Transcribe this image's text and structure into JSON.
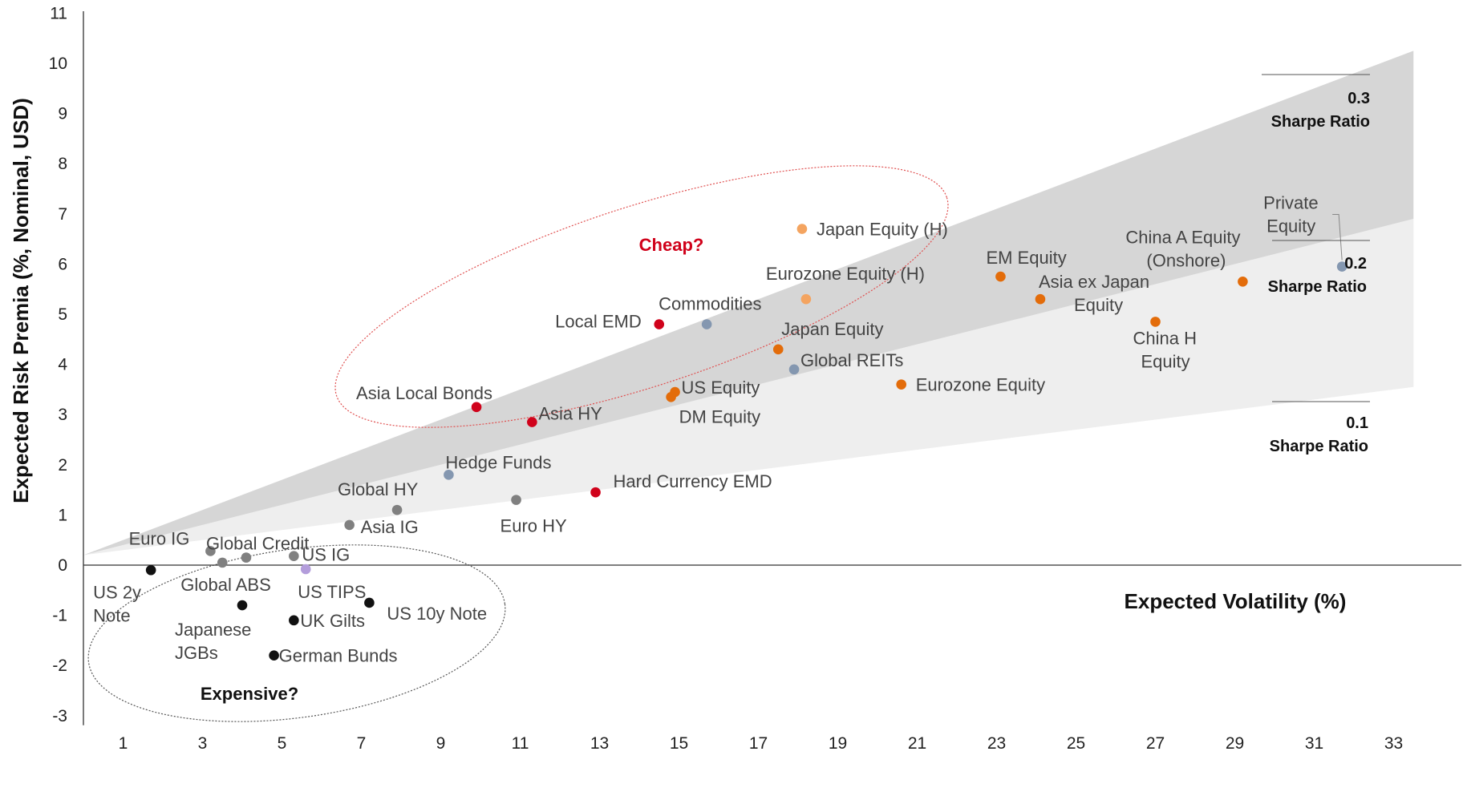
{
  "chart_data": {
    "type": "scatter",
    "xlabel": "Expected Volatility (%)",
    "ylabel": "Expected Risk Premia (%, Nominal, USD)",
    "xlim": [
      0,
      34
    ],
    "ylim": [
      -3,
      11
    ],
    "x_ticks": [
      1,
      3,
      5,
      7,
      9,
      11,
      13,
      15,
      17,
      19,
      21,
      23,
      25,
      27,
      29,
      31,
      33
    ],
    "y_ticks": [
      -3,
      -2,
      -1,
      0,
      1,
      2,
      3,
      4,
      5,
      6,
      7,
      8,
      9,
      10,
      11
    ],
    "grid": false,
    "colors": {
      "black": "#111111",
      "grey": "#808080",
      "blue_grey": "#8497b0",
      "red": "#d0021b",
      "orange": "#e36c0a",
      "light_orange": "#f4a460",
      "lavender": "#b39ddb"
    },
    "sharpe_bands": [
      {
        "label_value": "0.3",
        "label_text": "Sharpe Ratio",
        "ratio": 0.3
      },
      {
        "label_value": "0.2",
        "label_text": "Sharpe Ratio",
        "ratio": 0.2
      },
      {
        "label_value": "0.1",
        "label_text": "Sharpe Ratio",
        "ratio": 0.1
      }
    ],
    "annotations": [
      {
        "text": "Cheap?",
        "color": "#d0021b"
      },
      {
        "text": "Expensive?",
        "color": "#111111"
      }
    ],
    "points": [
      {
        "label": "US 2y Note",
        "x": 1.7,
        "y": -0.1,
        "color": "black"
      },
      {
        "label": "Euro IG",
        "x": 3.2,
        "y": 0.28,
        "color": "grey"
      },
      {
        "label": "Global ABS",
        "x": 3.5,
        "y": 0.05,
        "color": "grey"
      },
      {
        "label": "Global Credit",
        "x": 4.1,
        "y": 0.15,
        "color": "grey"
      },
      {
        "label": "Japanese JGBs",
        "x": 4.0,
        "y": -0.8,
        "color": "black"
      },
      {
        "label": "German Bunds",
        "x": 4.8,
        "y": -1.8,
        "color": "black"
      },
      {
        "label": "UK Gilts",
        "x": 5.3,
        "y": -1.1,
        "color": "black"
      },
      {
        "label": "US IG",
        "x": 5.3,
        "y": 0.18,
        "color": "grey"
      },
      {
        "label": "US TIPS",
        "x": 5.6,
        "y": -0.08,
        "color": "lavender"
      },
      {
        "label": "US 10y Note",
        "x": 7.2,
        "y": -0.75,
        "color": "black"
      },
      {
        "label": "Asia IG",
        "x": 6.7,
        "y": 0.8,
        "color": "grey"
      },
      {
        "label": "Global HY",
        "x": 7.9,
        "y": 1.1,
        "color": "grey"
      },
      {
        "label": "Asia Local Bonds",
        "x": 9.9,
        "y": 3.15,
        "color": "red"
      },
      {
        "label": "Hedge Funds",
        "x": 9.2,
        "y": 1.8,
        "color": "blue_grey"
      },
      {
        "label": "Euro HY",
        "x": 10.9,
        "y": 1.3,
        "color": "grey"
      },
      {
        "label": "Asia HY",
        "x": 11.3,
        "y": 2.85,
        "color": "red"
      },
      {
        "label": "Hard Currency EMD",
        "x": 12.9,
        "y": 1.45,
        "color": "red"
      },
      {
        "label": "Local EMD",
        "x": 14.5,
        "y": 4.8,
        "color": "red"
      },
      {
        "label": "US Equity",
        "x": 14.9,
        "y": 3.45,
        "color": "orange"
      },
      {
        "label": "DM Equity",
        "x": 14.8,
        "y": 3.35,
        "color": "orange"
      },
      {
        "label": "Commodities",
        "x": 15.7,
        "y": 4.8,
        "color": "blue_grey"
      },
      {
        "label": "Japan Equity",
        "x": 17.5,
        "y": 4.3,
        "color": "orange"
      },
      {
        "label": "Global REITs",
        "x": 17.9,
        "y": 3.9,
        "color": "blue_grey"
      },
      {
        "label": "Japan Equity (H)",
        "x": 18.1,
        "y": 6.7,
        "color": "light_orange"
      },
      {
        "label": "Eurozone Equity (H)",
        "x": 18.2,
        "y": 5.3,
        "color": "light_orange"
      },
      {
        "label": "Eurozone Equity",
        "x": 20.6,
        "y": 3.6,
        "color": "orange"
      },
      {
        "label": "EM Equity",
        "x": 23.1,
        "y": 5.75,
        "color": "orange"
      },
      {
        "label": "Asia ex Japan Equity",
        "x": 24.1,
        "y": 5.3,
        "color": "orange"
      },
      {
        "label": "China H Equity",
        "x": 27.0,
        "y": 4.85,
        "color": "orange"
      },
      {
        "label": "China A Equity (Onshore)",
        "x": 29.2,
        "y": 5.65,
        "color": "orange"
      },
      {
        "label": "Private Equity",
        "x": 31.7,
        "y": 5.95,
        "color": "blue_grey"
      }
    ]
  }
}
